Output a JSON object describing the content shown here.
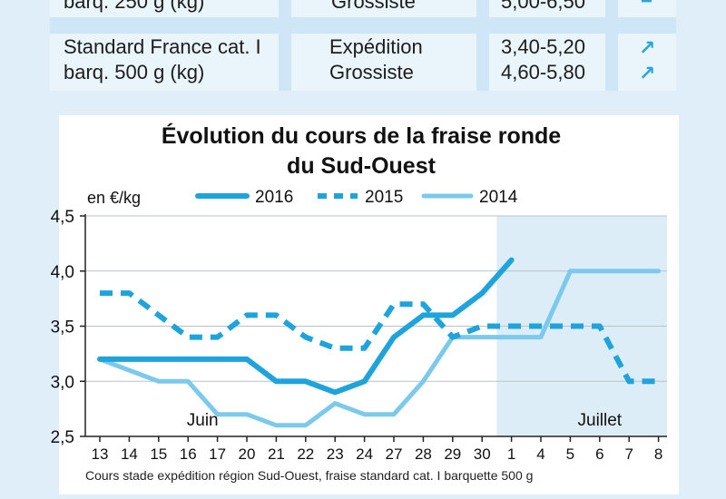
{
  "table": {
    "row_a": {
      "product": "barq. 250 g (kg)",
      "market": "Grossiste",
      "price": "5,00-6,50",
      "trend": "="
    },
    "row_b": {
      "product_line1": "Standard France cat. I",
      "product_line2": "barq. 500 g (kg)",
      "market_line1": "Expédition",
      "market_line2": "Grossiste",
      "price_line1": "3,40-5,20",
      "price_line2": "4,60-5,80",
      "trend_line1": "↗",
      "trend_line2": "↗"
    }
  },
  "chart_data": {
    "type": "line",
    "title_line1": "Évolution du cours de la fraise ronde",
    "title_line2": "du Sud-Ouest",
    "ylabel": "en €/kg",
    "ylim": [
      2.5,
      4.5
    ],
    "yticks": [
      "2,5",
      "3,0",
      "3,5",
      "4,0",
      "4,5"
    ],
    "categories": [
      "13",
      "14",
      "15",
      "16",
      "17",
      "20",
      "21",
      "22",
      "23",
      "24",
      "27",
      "28",
      "29",
      "30",
      "1",
      "4",
      "5",
      "6",
      "7",
      "8"
    ],
    "month_labels": [
      "Juin",
      "Juillet"
    ],
    "footnote": "Cours stade expédition région Sud-Ouest, fraise standard cat. I barquette 500 g",
    "series": [
      {
        "name": "2016",
        "style": "solid",
        "color": "#1fa3dc",
        "values": [
          3.2,
          3.2,
          3.2,
          3.2,
          3.2,
          3.2,
          3.0,
          3.0,
          2.9,
          3.0,
          3.4,
          3.6,
          3.6,
          3.8,
          4.1,
          null,
          null,
          null,
          null,
          null
        ]
      },
      {
        "name": "2015",
        "style": "dashed",
        "color": "#1fa3dc",
        "values": [
          3.8,
          3.8,
          3.6,
          3.4,
          3.4,
          3.6,
          3.6,
          3.4,
          3.3,
          3.3,
          3.7,
          3.7,
          3.4,
          3.5,
          3.5,
          3.5,
          3.5,
          3.5,
          3.0,
          3.0
        ]
      },
      {
        "name": "2014",
        "style": "light",
        "color": "#7cc9ee",
        "values": [
          3.2,
          3.1,
          3.0,
          3.0,
          2.7,
          2.7,
          2.6,
          2.6,
          2.8,
          2.7,
          2.7,
          3.0,
          3.4,
          3.4,
          3.4,
          3.4,
          4.0,
          4.0,
          4.0,
          4.0
        ]
      }
    ]
  }
}
